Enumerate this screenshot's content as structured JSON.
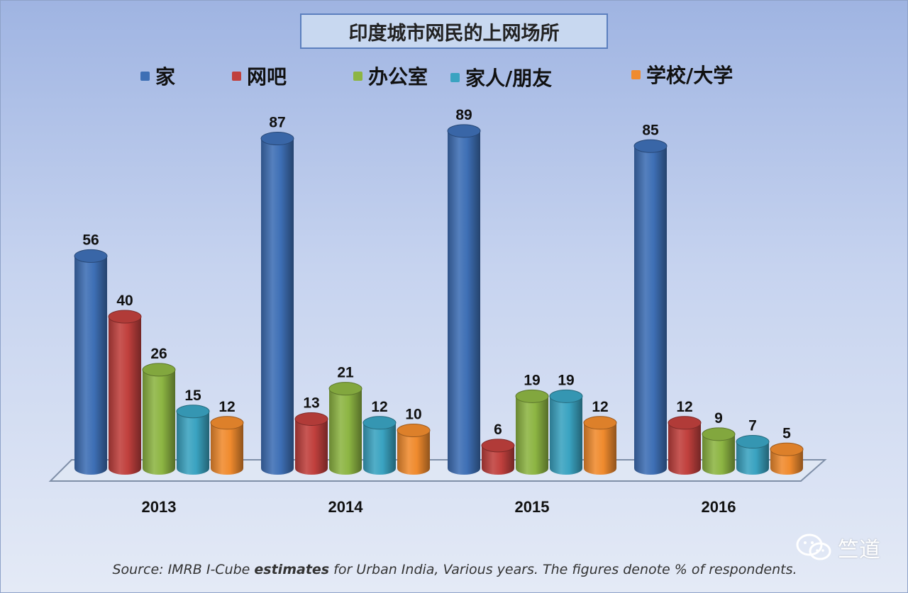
{
  "chart_data": {
    "type": "bar",
    "title": "印度城市网民的上网场所",
    "categories": [
      "2013",
      "2014",
      "2015",
      "2016"
    ],
    "series": [
      {
        "name": "家",
        "values": [
          56,
          87,
          89,
          85
        ],
        "color": "#3e6fb5"
      },
      {
        "name": "网吧",
        "values": [
          40,
          13,
          6,
          12
        ],
        "color": "#c0403d"
      },
      {
        "name": "办公室",
        "values": [
          26,
          21,
          19,
          9
        ],
        "color": "#8db543"
      },
      {
        "name": "家人/朋友",
        "values": [
          15,
          12,
          19,
          7
        ],
        "color": "#3aa3c1"
      },
      {
        "name": "学校/大学",
        "values": [
          12,
          10,
          12,
          5
        ],
        "color": "#f08b2e"
      }
    ],
    "xlabel": "",
    "ylabel": "",
    "ylim": [
      0,
      100
    ],
    "grid": false,
    "legend": "top"
  },
  "source": {
    "prefix": "Source: IMRB I-Cube ",
    "emphasis": "estimates",
    "suffix": " for Urban India, Various years. The figures denote % of respondents."
  },
  "watermark": "竺道"
}
